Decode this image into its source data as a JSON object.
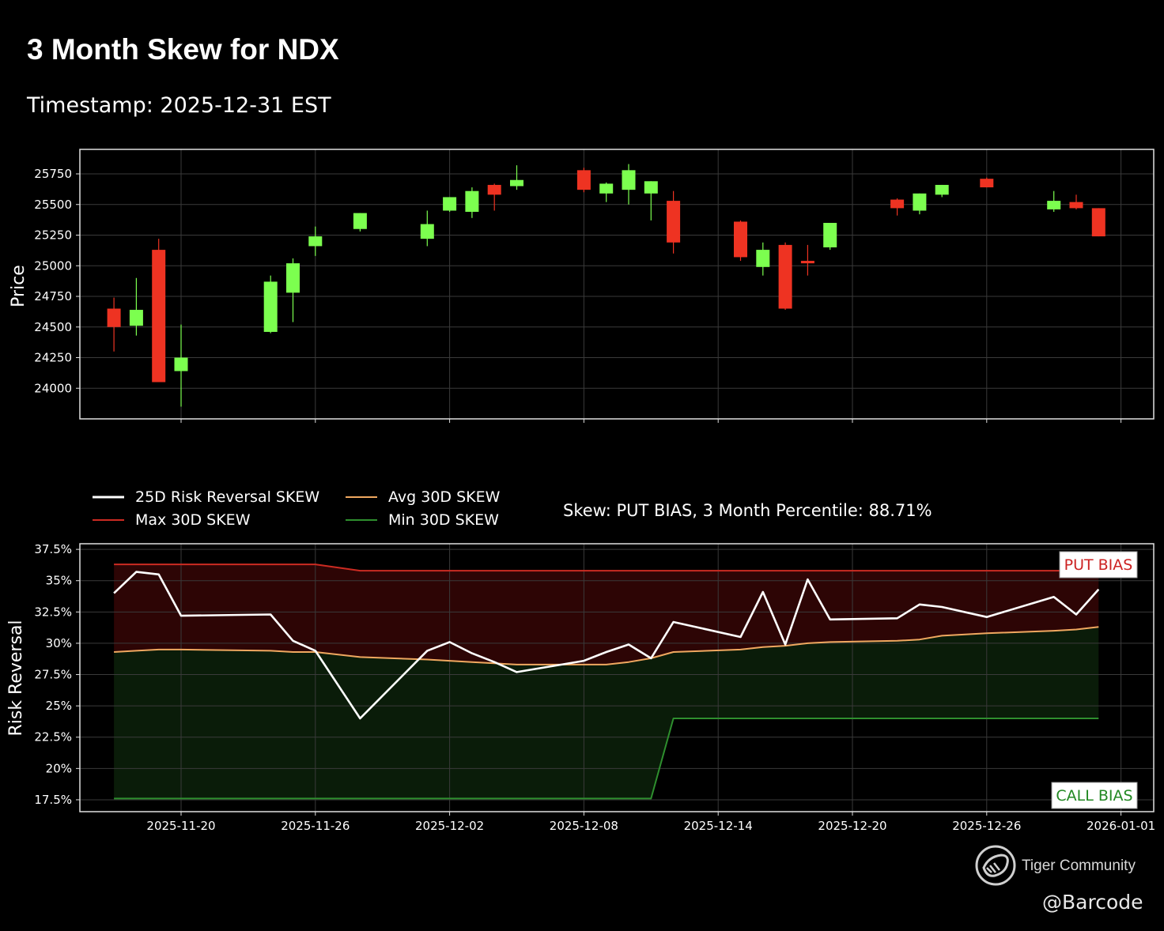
{
  "header": {
    "title": "3 Month Skew for NDX",
    "subtitle": "Timestamp: 2025-12-31 EST"
  },
  "watermark": {
    "brand": "Tiger Community",
    "user": "@Barcode",
    "logo_icon": "tiger-logo-icon"
  },
  "colors": {
    "background": "#000000",
    "up_candle": "#7cff4f",
    "down_candle": "#ee3322",
    "skew_line": "#ffffff",
    "max_line": "#cc2b22",
    "avg_line": "#f0a860",
    "min_line": "#2e8f2e",
    "put_fill": "#2d0505",
    "call_fill": "#0a1c09",
    "grid": "#3a3a3a",
    "put_label": "#cc2222",
    "call_label": "#228822"
  },
  "chart_data": [
    {
      "type": "candlestick",
      "title": "",
      "xlabel": "",
      "ylabel": "Price",
      "ylim": [
        23750,
        25950
      ],
      "y_ticks": [
        24000,
        24250,
        24500,
        24750,
        25000,
        25250,
        25500,
        25750
      ],
      "x_date_range": [
        "2025-11-15",
        "2026-01-01"
      ],
      "grid": true,
      "candles": [
        {
          "date": "2025-11-17",
          "open": 24650,
          "high": 24740,
          "low": 24300,
          "close": 24500
        },
        {
          "date": "2025-11-18",
          "open": 24510,
          "high": 24900,
          "low": 24430,
          "close": 24640
        },
        {
          "date": "2025-11-19",
          "open": 25130,
          "high": 25220,
          "low": 24050,
          "close": 24050
        },
        {
          "date": "2025-11-20",
          "open": 24140,
          "high": 24520,
          "low": 23850,
          "close": 24250
        },
        {
          "date": "2025-11-24",
          "open": 24460,
          "high": 24920,
          "low": 24450,
          "close": 24870
        },
        {
          "date": "2025-11-25",
          "open": 24780,
          "high": 25060,
          "low": 24540,
          "close": 25020
        },
        {
          "date": "2025-11-26",
          "open": 25160,
          "high": 25320,
          "low": 25080,
          "close": 25240
        },
        {
          "date": "2025-11-28",
          "open": 25300,
          "high": 25430,
          "low": 25280,
          "close": 25430
        },
        {
          "date": "2025-12-01",
          "open": 25220,
          "high": 25450,
          "low": 25160,
          "close": 25340
        },
        {
          "date": "2025-12-02",
          "open": 25450,
          "high": 25560,
          "low": 25440,
          "close": 25560
        },
        {
          "date": "2025-12-03",
          "open": 25440,
          "high": 25640,
          "low": 25390,
          "close": 25610
        },
        {
          "date": "2025-12-04",
          "open": 25660,
          "high": 25670,
          "low": 25450,
          "close": 25580
        },
        {
          "date": "2025-12-05",
          "open": 25650,
          "high": 25820,
          "low": 25620,
          "close": 25700
        },
        {
          "date": "2025-12-08",
          "open": 25780,
          "high": 25800,
          "low": 25600,
          "close": 25620
        },
        {
          "date": "2025-12-09",
          "open": 25590,
          "high": 25680,
          "low": 25520,
          "close": 25670
        },
        {
          "date": "2025-12-10",
          "open": 25620,
          "high": 25830,
          "low": 25500,
          "close": 25780
        },
        {
          "date": "2025-12-11",
          "open": 25590,
          "high": 25690,
          "low": 25370,
          "close": 25690
        },
        {
          "date": "2025-12-12",
          "open": 25530,
          "high": 25610,
          "low": 25100,
          "close": 25190
        },
        {
          "date": "2025-12-15",
          "open": 25360,
          "high": 25370,
          "low": 25040,
          "close": 25070
        },
        {
          "date": "2025-12-16",
          "open": 24990,
          "high": 25190,
          "low": 24920,
          "close": 25130
        },
        {
          "date": "2025-12-17",
          "open": 25170,
          "high": 25190,
          "low": 24640,
          "close": 24650
        },
        {
          "date": "2025-12-18",
          "open": 25040,
          "high": 25170,
          "low": 24920,
          "close": 25020
        },
        {
          "date": "2025-12-19",
          "open": 25150,
          "high": 25350,
          "low": 25130,
          "close": 25350
        },
        {
          "date": "2025-12-22",
          "open": 25540,
          "high": 25550,
          "low": 25410,
          "close": 25470
        },
        {
          "date": "2025-12-23",
          "open": 25450,
          "high": 25590,
          "low": 25420,
          "close": 25590
        },
        {
          "date": "2025-12-24",
          "open": 25580,
          "high": 25660,
          "low": 25560,
          "close": 25660
        },
        {
          "date": "2025-12-26",
          "open": 25710,
          "high": 25720,
          "low": 25640,
          "close": 25640
        },
        {
          "date": "2025-12-29",
          "open": 25460,
          "high": 25610,
          "low": 25440,
          "close": 25530
        },
        {
          "date": "2025-12-30",
          "open": 25520,
          "high": 25580,
          "low": 25460,
          "close": 25470
        },
        {
          "date": "2025-12-31",
          "open": 25470,
          "high": 25470,
          "low": 25240,
          "close": 25240
        }
      ]
    },
    {
      "type": "line",
      "title": "",
      "xlabel": "",
      "ylabel": "Risk Reversal",
      "ylim": [
        0.1655,
        0.3795
      ],
      "y_ticks": [
        0.175,
        0.2,
        0.225,
        0.25,
        0.275,
        0.3,
        0.325,
        0.35,
        0.375
      ],
      "y_tick_labels": [
        "17.5%",
        "20%",
        "22.5%",
        "25%",
        "27.5%",
        "30%",
        "32.5%",
        "35%",
        "37.5%"
      ],
      "x_date_range": [
        "2025-11-15",
        "2026-01-01"
      ],
      "x_ticks": [
        "2025-11-20",
        "2025-11-26",
        "2025-12-02",
        "2025-12-08",
        "2025-12-14",
        "2025-12-20",
        "2025-12-26",
        "2026-01-01"
      ],
      "grid": true,
      "legend_position": "top-left, above plot",
      "annotation": "Skew: PUT BIAS, 3 Month Percentile: 88.71%",
      "put_bias_label": "PUT BIAS",
      "call_bias_label": "CALL BIAS",
      "dates": [
        "2025-11-17",
        "2025-11-18",
        "2025-11-19",
        "2025-11-20",
        "2025-11-24",
        "2025-11-25",
        "2025-11-26",
        "2025-11-28",
        "2025-12-01",
        "2025-12-02",
        "2025-12-03",
        "2025-12-04",
        "2025-12-05",
        "2025-12-08",
        "2025-12-09",
        "2025-12-10",
        "2025-12-11",
        "2025-12-12",
        "2025-12-15",
        "2025-12-16",
        "2025-12-17",
        "2025-12-18",
        "2025-12-19",
        "2025-12-22",
        "2025-12-23",
        "2025-12-24",
        "2025-12-26",
        "2025-12-29",
        "2025-12-30",
        "2025-12-31"
      ],
      "series": [
        {
          "name": "25D Risk Reversal SKEW",
          "color": "#ffffff",
          "values": [
            0.34,
            0.357,
            0.355,
            0.322,
            0.323,
            0.302,
            0.294,
            0.24,
            0.294,
            0.301,
            0.292,
            0.285,
            0.277,
            0.286,
            0.293,
            0.299,
            0.288,
            0.317,
            0.305,
            0.341,
            0.299,
            0.351,
            0.319,
            0.32,
            0.331,
            0.329,
            0.321,
            0.337,
            0.323,
            0.343
          ]
        },
        {
          "name": "Max 30D SKEW",
          "color": "#cc2b22",
          "values": [
            0.363,
            0.363,
            0.363,
            0.363,
            0.363,
            0.363,
            0.363,
            0.358,
            0.358,
            0.358,
            0.358,
            0.358,
            0.358,
            0.358,
            0.358,
            0.358,
            0.358,
            0.358,
            0.358,
            0.358,
            0.358,
            0.358,
            0.358,
            0.358,
            0.358,
            0.358,
            0.358,
            0.358,
            0.358,
            0.358
          ]
        },
        {
          "name": "Avg 30D SKEW",
          "color": "#f0a860",
          "values": [
            0.293,
            0.294,
            0.295,
            0.295,
            0.294,
            0.293,
            0.293,
            0.289,
            0.287,
            0.286,
            0.285,
            0.284,
            0.283,
            0.283,
            0.283,
            0.285,
            0.288,
            0.293,
            0.295,
            0.297,
            0.298,
            0.3,
            0.301,
            0.302,
            0.303,
            0.306,
            0.308,
            0.31,
            0.311,
            0.313
          ]
        },
        {
          "name": "Min 30D SKEW",
          "color": "#2e8f2e",
          "values": [
            0.176,
            0.176,
            0.176,
            0.176,
            0.176,
            0.176,
            0.176,
            0.176,
            0.176,
            0.176,
            0.176,
            0.176,
            0.176,
            0.176,
            0.176,
            0.176,
            0.176,
            0.24,
            0.24,
            0.24,
            0.24,
            0.24,
            0.24,
            0.24,
            0.24,
            0.24,
            0.24,
            0.24,
            0.24,
            0.24
          ]
        }
      ]
    }
  ]
}
